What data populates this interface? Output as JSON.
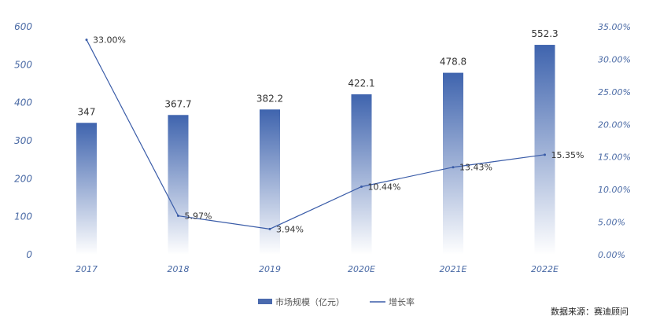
{
  "chart_data": {
    "type": "bar",
    "categories": [
      "2017",
      "2018",
      "2019",
      "2020E",
      "2021E",
      "2022E"
    ],
    "series": [
      {
        "name": "市场规模（亿元）",
        "type": "bar",
        "axis": "left",
        "values": [
          347,
          367.7,
          382.2,
          422.1,
          478.8,
          552.3
        ],
        "labels": [
          "347",
          "367.7",
          "382.2",
          "422.1",
          "478.8",
          "552.3"
        ]
      },
      {
        "name": "增长率",
        "type": "line",
        "axis": "right",
        "values": [
          33.0,
          5.97,
          3.94,
          10.44,
          13.43,
          15.35
        ],
        "labels": [
          "33.00%",
          "5.97%",
          "3.94%",
          "10.44%",
          "13.43%",
          "15.35%"
        ]
      }
    ],
    "ylim": [
      0,
      600
    ],
    "yticks": [
      "0",
      "100",
      "200",
      "300",
      "400",
      "500",
      "600"
    ],
    "y2lim": [
      0,
      35
    ],
    "y2ticks": [
      "0.00%",
      "5.00%",
      "10.00%",
      "15.00%",
      "20.00%",
      "25.00%",
      "30.00%",
      "35.00%"
    ],
    "grid": false,
    "legend": "bottom-center",
    "colors": {
      "bar_top": "#3f64ae",
      "bar_bottom": "#ffffff",
      "line": "#3a5ca8",
      "axis_text": "#4a6aa5"
    }
  },
  "source": "数据来源：赛迪顾问"
}
